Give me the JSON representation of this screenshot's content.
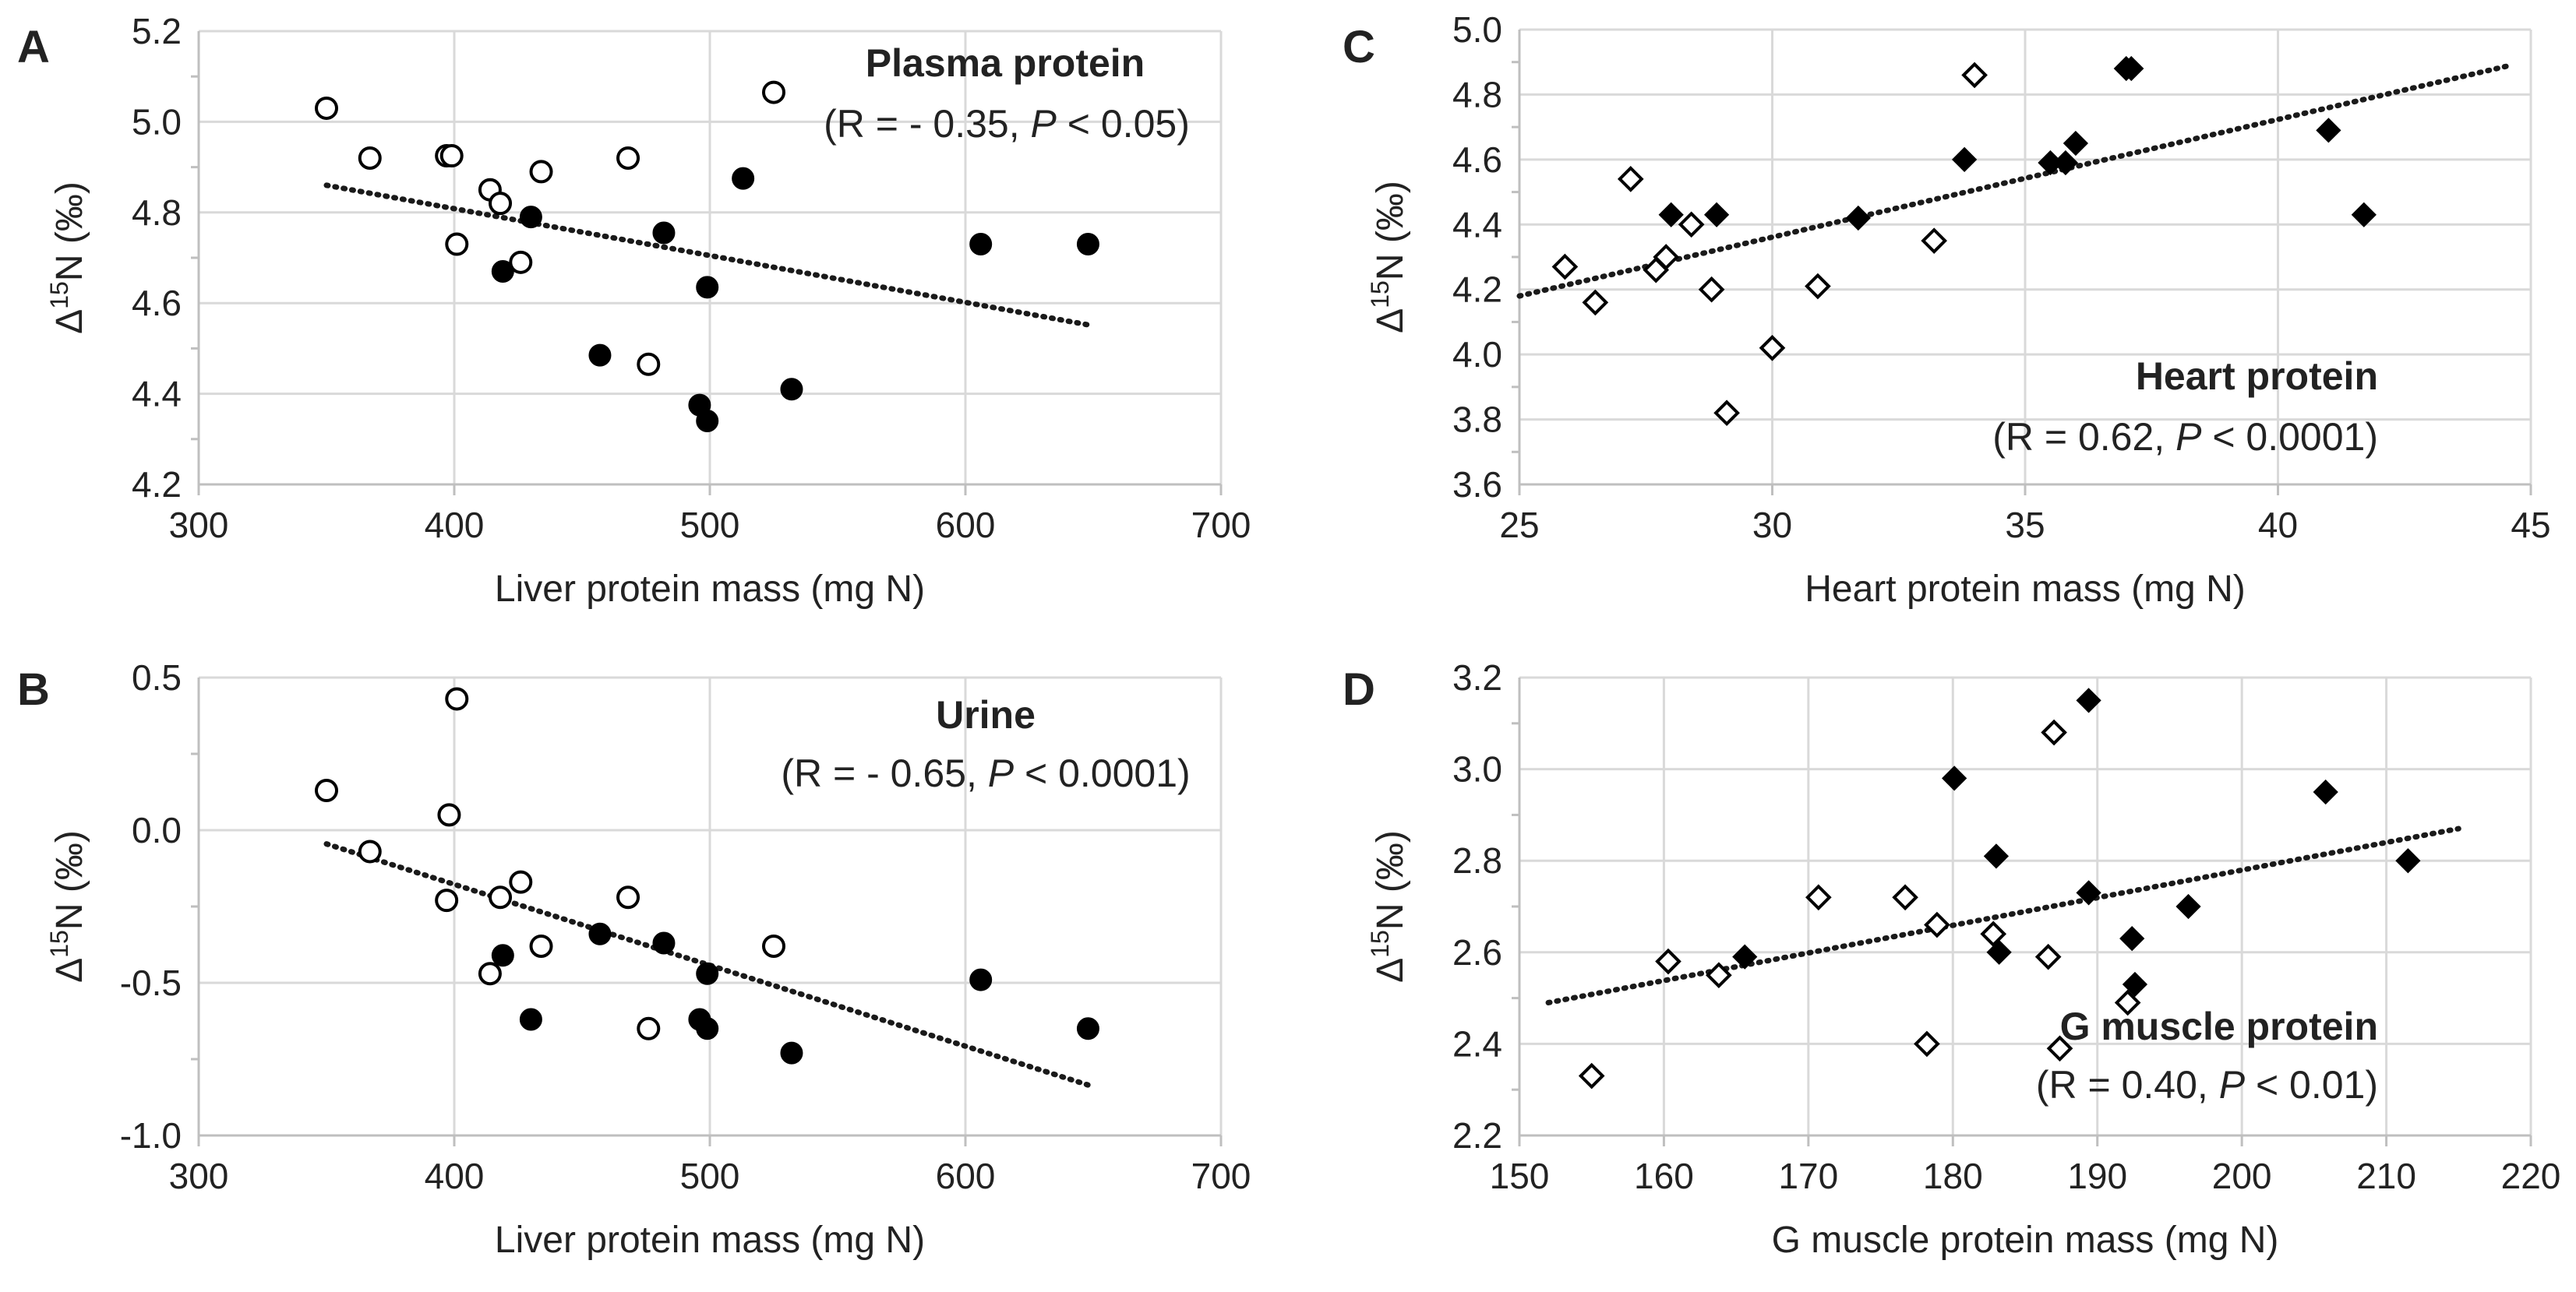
{
  "chart_data": [
    {
      "panel": "A",
      "type": "scatter",
      "title": "Plasma protein",
      "stat_label": "(R = - 0.35, ",
      "stat_p": "P",
      "stat_value": " < 0.05)",
      "xlabel": "Liver protein mass (mg N)",
      "ylabel_main": "Δ",
      "ylabel_sup": "15",
      "ylabel_rest": "N (‰)",
      "xlim": [
        300,
        700
      ],
      "ylim": [
        4.2,
        5.2
      ],
      "xticks": [
        300,
        400,
        500,
        600,
        700
      ],
      "yticks": [
        4.2,
        4.4,
        4.6,
        4.8,
        5.0,
        5.2
      ],
      "xtick_labels": [
        "300",
        "400",
        "500",
        "600",
        "700"
      ],
      "ytick_labels": [
        "4.2",
        "4.4",
        "4.6",
        "4.8",
        "5.0",
        "5.2"
      ],
      "marker": "circle",
      "trendline": [
        [
          350,
          4.86
        ],
        [
          650,
          4.55
        ]
      ],
      "series": [
        {
          "name": "open",
          "filled": false,
          "x": [
            350,
            367,
            397,
            399,
            401,
            414,
            418,
            426,
            434,
            468,
            476,
            525
          ],
          "y": [
            5.03,
            4.92,
            4.925,
            4.925,
            4.73,
            4.85,
            4.82,
            4.69,
            4.89,
            4.92,
            4.465,
            5.065
          ]
        },
        {
          "name": "filled",
          "filled": true,
          "x": [
            419,
            430,
            457,
            482,
            496,
            499,
            499,
            513,
            532,
            606,
            648
          ],
          "y": [
            4.67,
            4.79,
            4.485,
            4.755,
            4.375,
            4.34,
            4.635,
            4.875,
            4.41,
            4.73,
            4.73
          ]
        }
      ]
    },
    {
      "panel": "B",
      "type": "scatter",
      "title": "Urine",
      "stat_label": "(R = - 0.65, ",
      "stat_p": "P",
      "stat_value": " < 0.0001)",
      "xlabel": "Liver protein mass (mg N)",
      "ylabel_main": "Δ",
      "ylabel_sup": "15",
      "ylabel_rest": "N (‰)",
      "xlim": [
        300,
        700
      ],
      "ylim": [
        -1.0,
        0.5
      ],
      "xticks": [
        300,
        400,
        500,
        600,
        700
      ],
      "yticks": [
        -1.0,
        -0.5,
        0.0,
        0.5
      ],
      "xtick_labels": [
        "300",
        "400",
        "500",
        "600",
        "700"
      ],
      "ytick_labels": [
        "-1.0",
        "-0.5",
        "0.0",
        "0.5"
      ],
      "marker": "circle",
      "trendline": [
        [
          350,
          -0.045
        ],
        [
          650,
          -0.84
        ]
      ],
      "series": [
        {
          "name": "open",
          "filled": false,
          "x": [
            350,
            367,
            397,
            398,
            401,
            414,
            418,
            426,
            434,
            468,
            476,
            525
          ],
          "y": [
            0.13,
            -0.07,
            -0.23,
            0.05,
            0.43,
            -0.47,
            -0.22,
            -0.17,
            -0.38,
            -0.22,
            -0.65,
            -0.38
          ]
        },
        {
          "name": "filled",
          "filled": true,
          "x": [
            419,
            430,
            457,
            482,
            496,
            499,
            499,
            532,
            606,
            648
          ],
          "y": [
            -0.41,
            -0.62,
            -0.34,
            -0.37,
            -0.62,
            -0.47,
            -0.65,
            -0.73,
            -0.49,
            -0.65
          ]
        }
      ]
    },
    {
      "panel": "C",
      "type": "scatter",
      "title": "Heart protein",
      "stat_label": "(R = 0.62, ",
      "stat_p": "P",
      "stat_value": " < 0.0001)",
      "xlabel": "Heart protein mass (mg N)",
      "ylabel_main": "Δ",
      "ylabel_sup": "15",
      "ylabel_rest": "N (‰)",
      "xlim": [
        25,
        45
      ],
      "ylim": [
        3.6,
        5.0
      ],
      "xticks": [
        25,
        30,
        35,
        40,
        45
      ],
      "yticks": [
        3.6,
        3.8,
        4.0,
        4.2,
        4.4,
        4.6,
        4.8,
        5.0
      ],
      "xtick_labels": [
        "25",
        "30",
        "35",
        "40",
        "45"
      ],
      "ytick_labels": [
        "3.6",
        "3.8",
        "4.0",
        "4.2",
        "4.4",
        "4.6",
        "4.8",
        "5.0"
      ],
      "marker": "diamond",
      "trendline": [
        [
          25,
          4.18
        ],
        [
          44.6,
          4.89
        ]
      ],
      "series": [
        {
          "name": "open",
          "filled": false,
          "x": [
            25.9,
            26.5,
            27.2,
            27.7,
            27.9,
            28.4,
            28.8,
            29.1,
            30.0,
            30.9,
            33.2,
            34.0
          ],
          "y": [
            4.27,
            4.16,
            4.54,
            4.26,
            4.3,
            4.4,
            4.2,
            3.82,
            4.02,
            4.21,
            4.35,
            4.86
          ]
        },
        {
          "name": "filled",
          "filled": true,
          "x": [
            28.0,
            28.9,
            31.7,
            33.8,
            35.5,
            35.8,
            36.0,
            37.0,
            37.1,
            41.0,
            41.7
          ],
          "y": [
            4.43,
            4.43,
            4.42,
            4.6,
            4.59,
            4.59,
            4.65,
            4.88,
            4.88,
            4.69,
            4.43
          ]
        }
      ]
    },
    {
      "panel": "D",
      "type": "scatter",
      "title": "G muscle protein",
      "stat_label": "(R = 0.40, ",
      "stat_p": "P",
      "stat_value": " < 0.01)",
      "xlabel": "G muscle protein mass (mg N)",
      "ylabel_main": "Δ",
      "ylabel_sup": "15",
      "ylabel_rest": "N (‰)",
      "xlim": [
        150,
        220
      ],
      "ylim": [
        2.2,
        3.2
      ],
      "xticks": [
        150,
        160,
        170,
        180,
        190,
        200,
        210,
        220
      ],
      "yticks": [
        2.2,
        2.4,
        2.6,
        2.8,
        3.0,
        3.2
      ],
      "xtick_labels": [
        "150",
        "160",
        "170",
        "180",
        "190",
        "200",
        "210",
        "220"
      ],
      "ytick_labels": [
        "2.2",
        "2.4",
        "2.6",
        "2.8",
        "3.0",
        "3.2"
      ],
      "marker": "diamond",
      "trendline": [
        [
          152,
          2.49
        ],
        [
          215,
          2.87
        ]
      ],
      "series": [
        {
          "name": "open",
          "filled": false,
          "x": [
            155.0,
            160.3,
            163.8,
            170.7,
            176.7,
            178.2,
            178.9,
            182.8,
            186.6,
            187.0,
            187.4,
            192.1
          ],
          "y": [
            2.33,
            2.58,
            2.55,
            2.72,
            2.72,
            2.4,
            2.66,
            2.64,
            2.59,
            3.08,
            2.39,
            2.49
          ]
        },
        {
          "name": "filled",
          "filled": true,
          "x": [
            165.6,
            180.1,
            183.0,
            183.2,
            189.4,
            189.4,
            192.4,
            192.6,
            196.3,
            205.8,
            211.5
          ],
          "y": [
            2.59,
            2.98,
            2.81,
            2.6,
            2.73,
            3.15,
            2.63,
            2.53,
            2.7,
            2.95,
            2.8
          ]
        }
      ]
    }
  ]
}
